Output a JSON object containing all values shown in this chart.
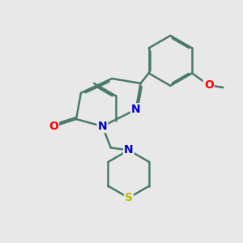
{
  "background_color": "#e8e8e8",
  "bond_color": "#4a7a6a",
  "bond_width": 1.8,
  "atom_colors": {
    "N": "#0000cc",
    "O": "#ff0000",
    "S": "#bbbb00",
    "C": "#4a7a6a"
  },
  "font_size": 10,
  "figsize": [
    3.0,
    3.0
  ],
  "dpi": 100
}
